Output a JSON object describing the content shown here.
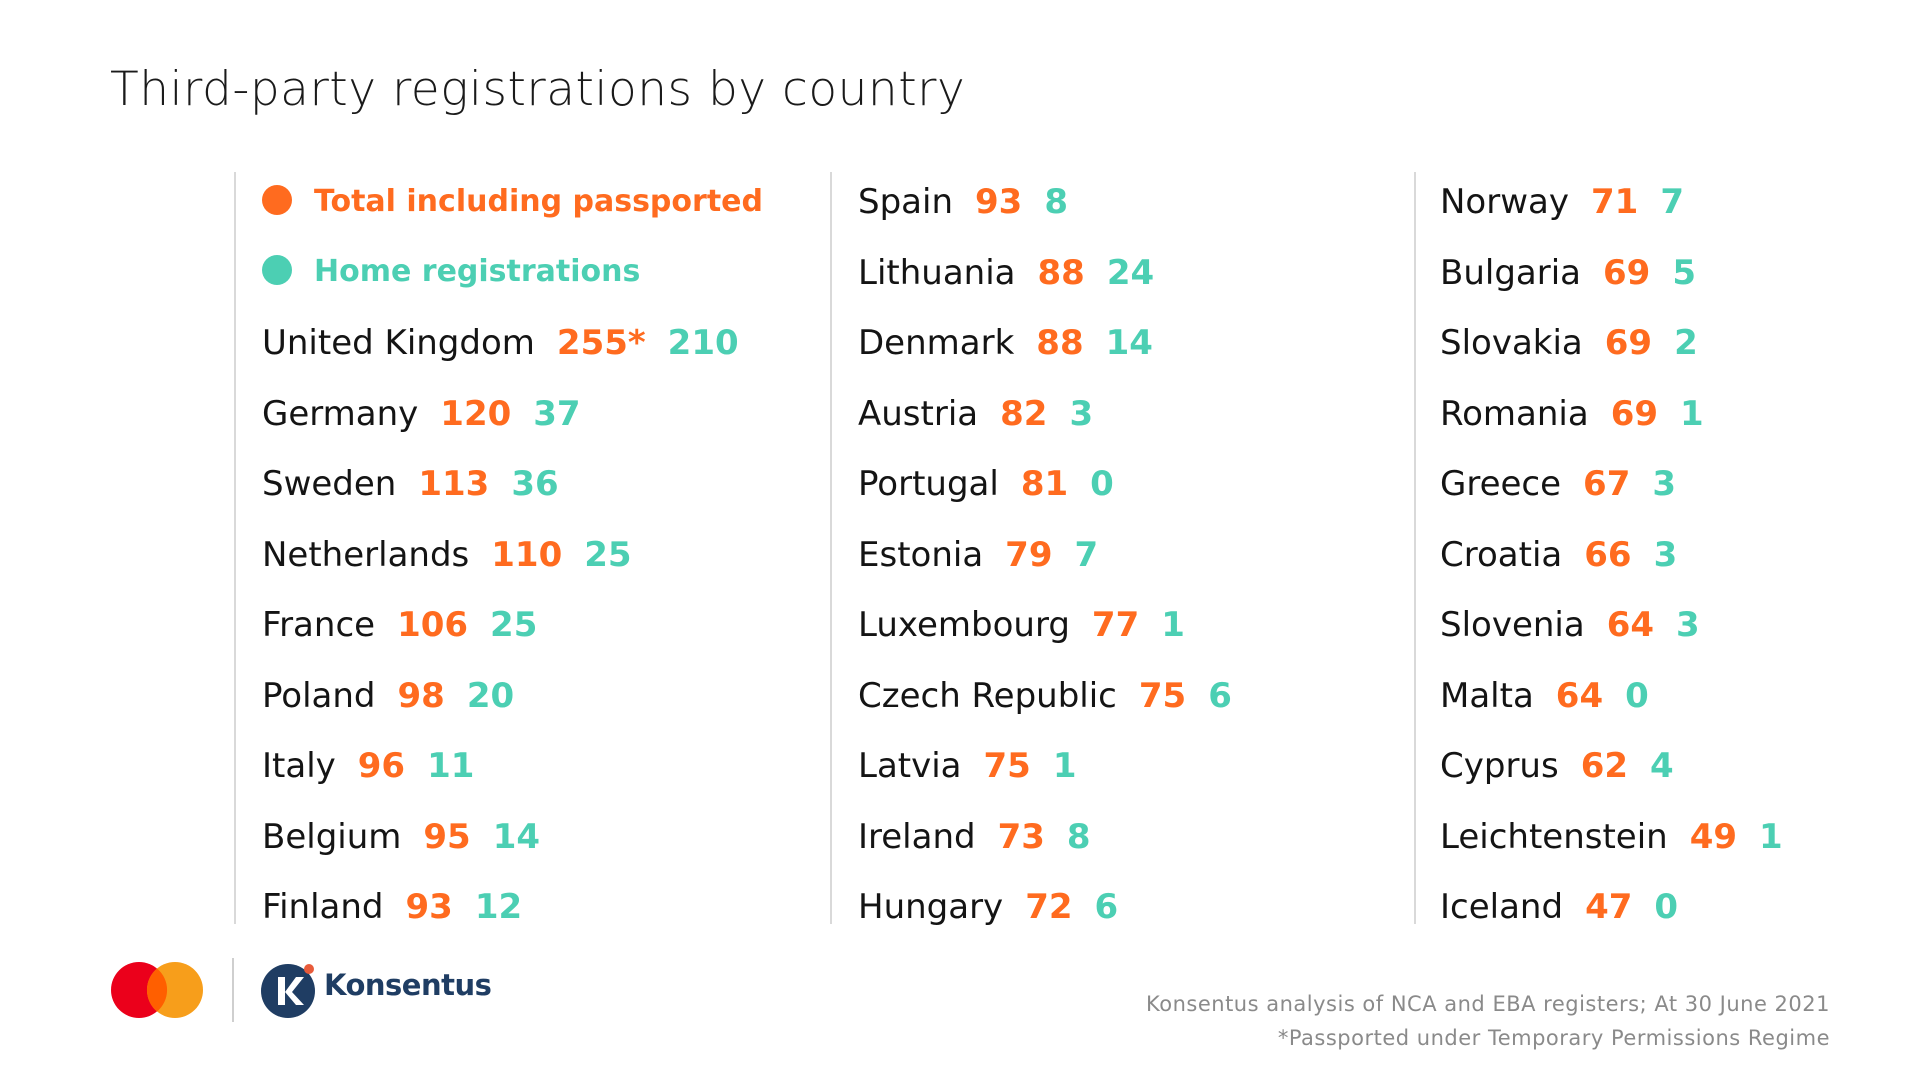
{
  "title": "Third-party registrations by country",
  "legend": {
    "total_label": "Total including passported",
    "home_label": "Home registrations",
    "total_color": "#ff6b1f",
    "home_color": "#4ccfb3"
  },
  "chart_data": {
    "type": "table",
    "title": "Third-party registrations by country",
    "series": [
      {
        "name": "Total including passported",
        "color": "#ff6b1f"
      },
      {
        "name": "Home registrations",
        "color": "#4ccfb3"
      }
    ],
    "columns": [
      [
        {
          "country": "United Kingdom",
          "total": "255*",
          "home": "210"
        },
        {
          "country": "Germany",
          "total": "120",
          "home": "37"
        },
        {
          "country": "Sweden",
          "total": "113",
          "home": "36"
        },
        {
          "country": "Netherlands",
          "total": "110",
          "home": "25"
        },
        {
          "country": "France",
          "total": "106",
          "home": "25"
        },
        {
          "country": "Poland",
          "total": "98",
          "home": "20"
        },
        {
          "country": "Italy",
          "total": "96",
          "home": "11"
        },
        {
          "country": "Belgium",
          "total": "95",
          "home": "14"
        },
        {
          "country": "Finland",
          "total": "93",
          "home": "12"
        }
      ],
      [
        {
          "country": "Spain",
          "total": "93",
          "home": "8"
        },
        {
          "country": "Lithuania",
          "total": "88",
          "home": "24"
        },
        {
          "country": "Denmark",
          "total": "88",
          "home": "14"
        },
        {
          "country": "Austria",
          "total": "82",
          "home": "3"
        },
        {
          "country": "Portugal",
          "total": "81",
          "home": "0"
        },
        {
          "country": "Estonia",
          "total": "79",
          "home": "7"
        },
        {
          "country": "Luxembourg",
          "total": "77",
          "home": "1"
        },
        {
          "country": "Czech Republic",
          "total": "75",
          "home": "6"
        },
        {
          "country": "Latvia",
          "total": "75",
          "home": "1"
        },
        {
          "country": "Ireland",
          "total": "73",
          "home": "8"
        },
        {
          "country": "Hungary",
          "total": "72",
          "home": "6"
        }
      ],
      [
        {
          "country": "Norway",
          "total": "71",
          "home": "7"
        },
        {
          "country": "Bulgaria",
          "total": "69",
          "home": "5"
        },
        {
          "country": "Slovakia",
          "total": "69",
          "home": "2"
        },
        {
          "country": "Romania",
          "total": "69",
          "home": "1"
        },
        {
          "country": "Greece",
          "total": "67",
          "home": "3"
        },
        {
          "country": "Croatia",
          "total": "66",
          "home": "3"
        },
        {
          "country": "Slovenia",
          "total": "64",
          "home": "3"
        },
        {
          "country": "Malta",
          "total": "64",
          "home": "0"
        },
        {
          "country": "Cyprus",
          "total": "62",
          "home": "4"
        },
        {
          "country": "Leichtenstein",
          "total": "49",
          "home": "1"
        },
        {
          "country": "Iceland",
          "total": "47",
          "home": "0"
        }
      ]
    ]
  },
  "footer": {
    "source": "Konsentus analysis of NCA and EBA registers; At 30 June 2021",
    "note": "*Passported under Temporary Permissions Regime"
  },
  "logos": {
    "mastercard_icon": "mastercard-logo",
    "konsentus_icon": "konsentus-k-icon",
    "konsentus_name": "Konsentus"
  }
}
